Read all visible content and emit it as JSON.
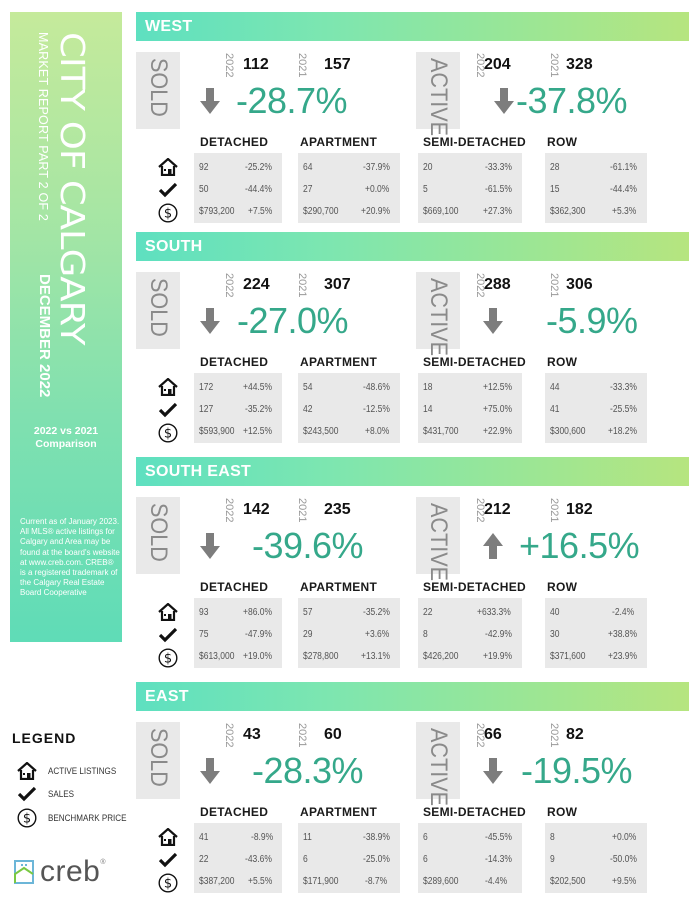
{
  "sidebar": {
    "title": "CITY OF CALGARY",
    "subtitle": "MARKET REPORT PART 2 OF 2",
    "date": "DECEMBER 2022",
    "comparison_line1": "2022 vs 2021",
    "comparison_line2": "Comparison",
    "notice": "Current as of January 2023. All MLS® active listings for Calgary and Area may be found at the board's website at www.creb.com. CREB® is a registered trademark of the Calgary Real Estate Board Cooperative"
  },
  "legend": {
    "title": "LEGEND",
    "items": [
      {
        "icon": "house-icon",
        "label": "ACTIVE LISTINGS"
      },
      {
        "icon": "checkmark-icon",
        "label": "SALES"
      },
      {
        "icon": "dollar-circle-icon",
        "label": "BENCHMARK PRICE"
      }
    ]
  },
  "logo": {
    "text": "creb",
    "reg": "®"
  },
  "labels": {
    "sold": "SOLD",
    "active": "ACTIVE",
    "year_current": "2022",
    "year_prior": "2021",
    "categories": [
      "DETACHED",
      "APARTMENT",
      "SEMI-DETACHED",
      "ROW"
    ]
  },
  "colors": {
    "accent_green": "#35a88a",
    "arrow_gray": "#7d7d7d",
    "bar_start": "#5ee0c0",
    "bar_end": "#b6e57f"
  },
  "regions": [
    {
      "name": "WEST",
      "sold": {
        "y2022": "112",
        "y2021": "157",
        "change": "-28.7%",
        "direction": "down"
      },
      "active": {
        "y2022": "204",
        "y2021": "328",
        "change": "-37.8%",
        "direction": "down"
      },
      "tables": [
        {
          "rows": [
            [
              "92",
              "-25.2%"
            ],
            [
              "50",
              "-44.4%"
            ],
            [
              "$793,200",
              "+7.5%"
            ]
          ]
        },
        {
          "rows": [
            [
              "64",
              "-37.9%"
            ],
            [
              "27",
              "+0.0%"
            ],
            [
              "$290,700",
              "+20.9%"
            ]
          ]
        },
        {
          "rows": [
            [
              "20",
              "-33.3%"
            ],
            [
              "5",
              "-61.5%"
            ],
            [
              "$669,100",
              "+27.3%"
            ]
          ]
        },
        {
          "rows": [
            [
              "28",
              "-61.1%"
            ],
            [
              "15",
              "-44.4%"
            ],
            [
              "$362,300",
              "+5.3%"
            ]
          ]
        }
      ]
    },
    {
      "name": "SOUTH",
      "sold": {
        "y2022": "224",
        "y2021": "307",
        "change": "-27.0%",
        "direction": "down"
      },
      "active": {
        "y2022": "288",
        "y2021": "306",
        "change": "-5.9%",
        "direction": "down"
      },
      "tables": [
        {
          "rows": [
            [
              "172",
              "+44.5%"
            ],
            [
              "127",
              "-35.2%"
            ],
            [
              "$593,900",
              "+12.5%"
            ]
          ]
        },
        {
          "rows": [
            [
              "54",
              "-48.6%"
            ],
            [
              "42",
              "-12.5%"
            ],
            [
              "$243,500",
              "+8.0%"
            ]
          ]
        },
        {
          "rows": [
            [
              "18",
              "+12.5%"
            ],
            [
              "14",
              "+75.0%"
            ],
            [
              "$431,700",
              "+22.9%"
            ]
          ]
        },
        {
          "rows": [
            [
              "44",
              "-33.3%"
            ],
            [
              "41",
              "-25.5%"
            ],
            [
              "$300,600",
              "+18.2%"
            ]
          ]
        }
      ]
    },
    {
      "name": "SOUTH EAST",
      "sold": {
        "y2022": "142",
        "y2021": "235",
        "change": "-39.6%",
        "direction": "down"
      },
      "active": {
        "y2022": "212",
        "y2021": "182",
        "change": "+16.5%",
        "direction": "up"
      },
      "tables": [
        {
          "rows": [
            [
              "93",
              "+86.0%"
            ],
            [
              "75",
              "-47.9%"
            ],
            [
              "$613,000",
              "+19.0%"
            ]
          ]
        },
        {
          "rows": [
            [
              "57",
              "-35.2%"
            ],
            [
              "29",
              "+3.6%"
            ],
            [
              "$278,800",
              "+13.1%"
            ]
          ]
        },
        {
          "rows": [
            [
              "22",
              "+633.3%"
            ],
            [
              "8",
              "-42.9%"
            ],
            [
              "$426,200",
              "+19.9%"
            ]
          ]
        },
        {
          "rows": [
            [
              "40",
              "-2.4%"
            ],
            [
              "30",
              "+38.8%"
            ],
            [
              "$371,600",
              "+23.9%"
            ]
          ]
        }
      ]
    },
    {
      "name": "EAST",
      "sold": {
        "y2022": "43",
        "y2021": "60",
        "change": "-28.3%",
        "direction": "down"
      },
      "active": {
        "y2022": "66",
        "y2021": "82",
        "change": "-19.5%",
        "direction": "down"
      },
      "tables": [
        {
          "rows": [
            [
              "41",
              "-8.9%"
            ],
            [
              "22",
              "-43.6%"
            ],
            [
              "$387,200",
              "+5.5%"
            ]
          ]
        },
        {
          "rows": [
            [
              "11",
              "-38.9%"
            ],
            [
              "6",
              "-25.0%"
            ],
            [
              "$171,900",
              "-8.7%"
            ]
          ]
        },
        {
          "rows": [
            [
              "6",
              "-45.5%"
            ],
            [
              "6",
              "-14.3%"
            ],
            [
              "$289,600",
              "-4.4%"
            ]
          ]
        },
        {
          "rows": [
            [
              "8",
              "+0.0%"
            ],
            [
              "9",
              "-50.0%"
            ],
            [
              "$202,500",
              "+9.5%"
            ]
          ]
        }
      ]
    }
  ]
}
